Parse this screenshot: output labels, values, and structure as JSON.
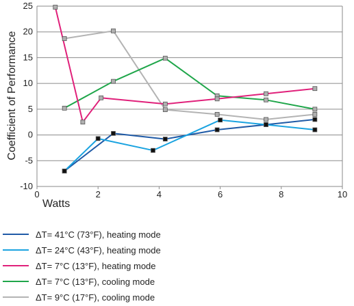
{
  "chart_data": {
    "type": "line",
    "title": "",
    "xlabel": "Watts",
    "ylabel": "Coefficient of Performance",
    "xlim": [
      0,
      10
    ],
    "ylim": [
      -10,
      25
    ],
    "xticks": [
      0,
      2,
      4,
      6,
      8,
      10
    ],
    "yticks": [
      -10,
      -5,
      0,
      5,
      10,
      15,
      20,
      25
    ],
    "grid": "horizontal",
    "legend_position": "bottom",
    "series": [
      {
        "name": "ΔT= 41°C (73°F), heating mode",
        "color": "#1f5aa6",
        "marker_fill": "#111111",
        "x": [
          0.9,
          2.5,
          4.2,
          5.9,
          7.5,
          9.1
        ],
        "y": [
          -7.0,
          0.3,
          -0.8,
          1.0,
          2.0,
          3.0
        ]
      },
      {
        "name": "ΔT= 24°C (43°F), heating mode",
        "color": "#1aa3e0",
        "marker_fill": "#111111",
        "x": [
          0.9,
          2.0,
          3.8,
          6.0,
          7.5,
          9.1
        ],
        "y": [
          -7.0,
          -0.7,
          -3.0,
          2.9,
          2.0,
          1.0
        ]
      },
      {
        "name": "ΔT= 7°C (13°F), heating mode",
        "color": "#e0207a",
        "marker_fill": "#b0b0b0",
        "x": [
          0.6,
          1.5,
          2.1,
          4.2,
          5.9,
          7.5,
          9.1
        ],
        "y": [
          24.8,
          2.5,
          7.2,
          6.0,
          7.0,
          8.0,
          9.0
        ]
      },
      {
        "name": "ΔT= 7°C (13°F), cooling mode",
        "color": "#1fa64a",
        "marker_fill": "#b0b0b0",
        "x": [
          0.9,
          2.5,
          4.2,
          5.9,
          7.5,
          9.1
        ],
        "y": [
          5.2,
          10.4,
          14.9,
          7.6,
          6.8,
          5.0
        ]
      },
      {
        "name": "ΔT= 9°C (17°F), cooling mode",
        "color": "#b3b3b3",
        "marker_fill": "#b0b0b0",
        "x": [
          0.9,
          2.5,
          4.2,
          5.9,
          7.5,
          9.1
        ],
        "y": [
          18.7,
          20.2,
          4.9,
          4.0,
          3.0,
          4.0
        ]
      }
    ]
  }
}
